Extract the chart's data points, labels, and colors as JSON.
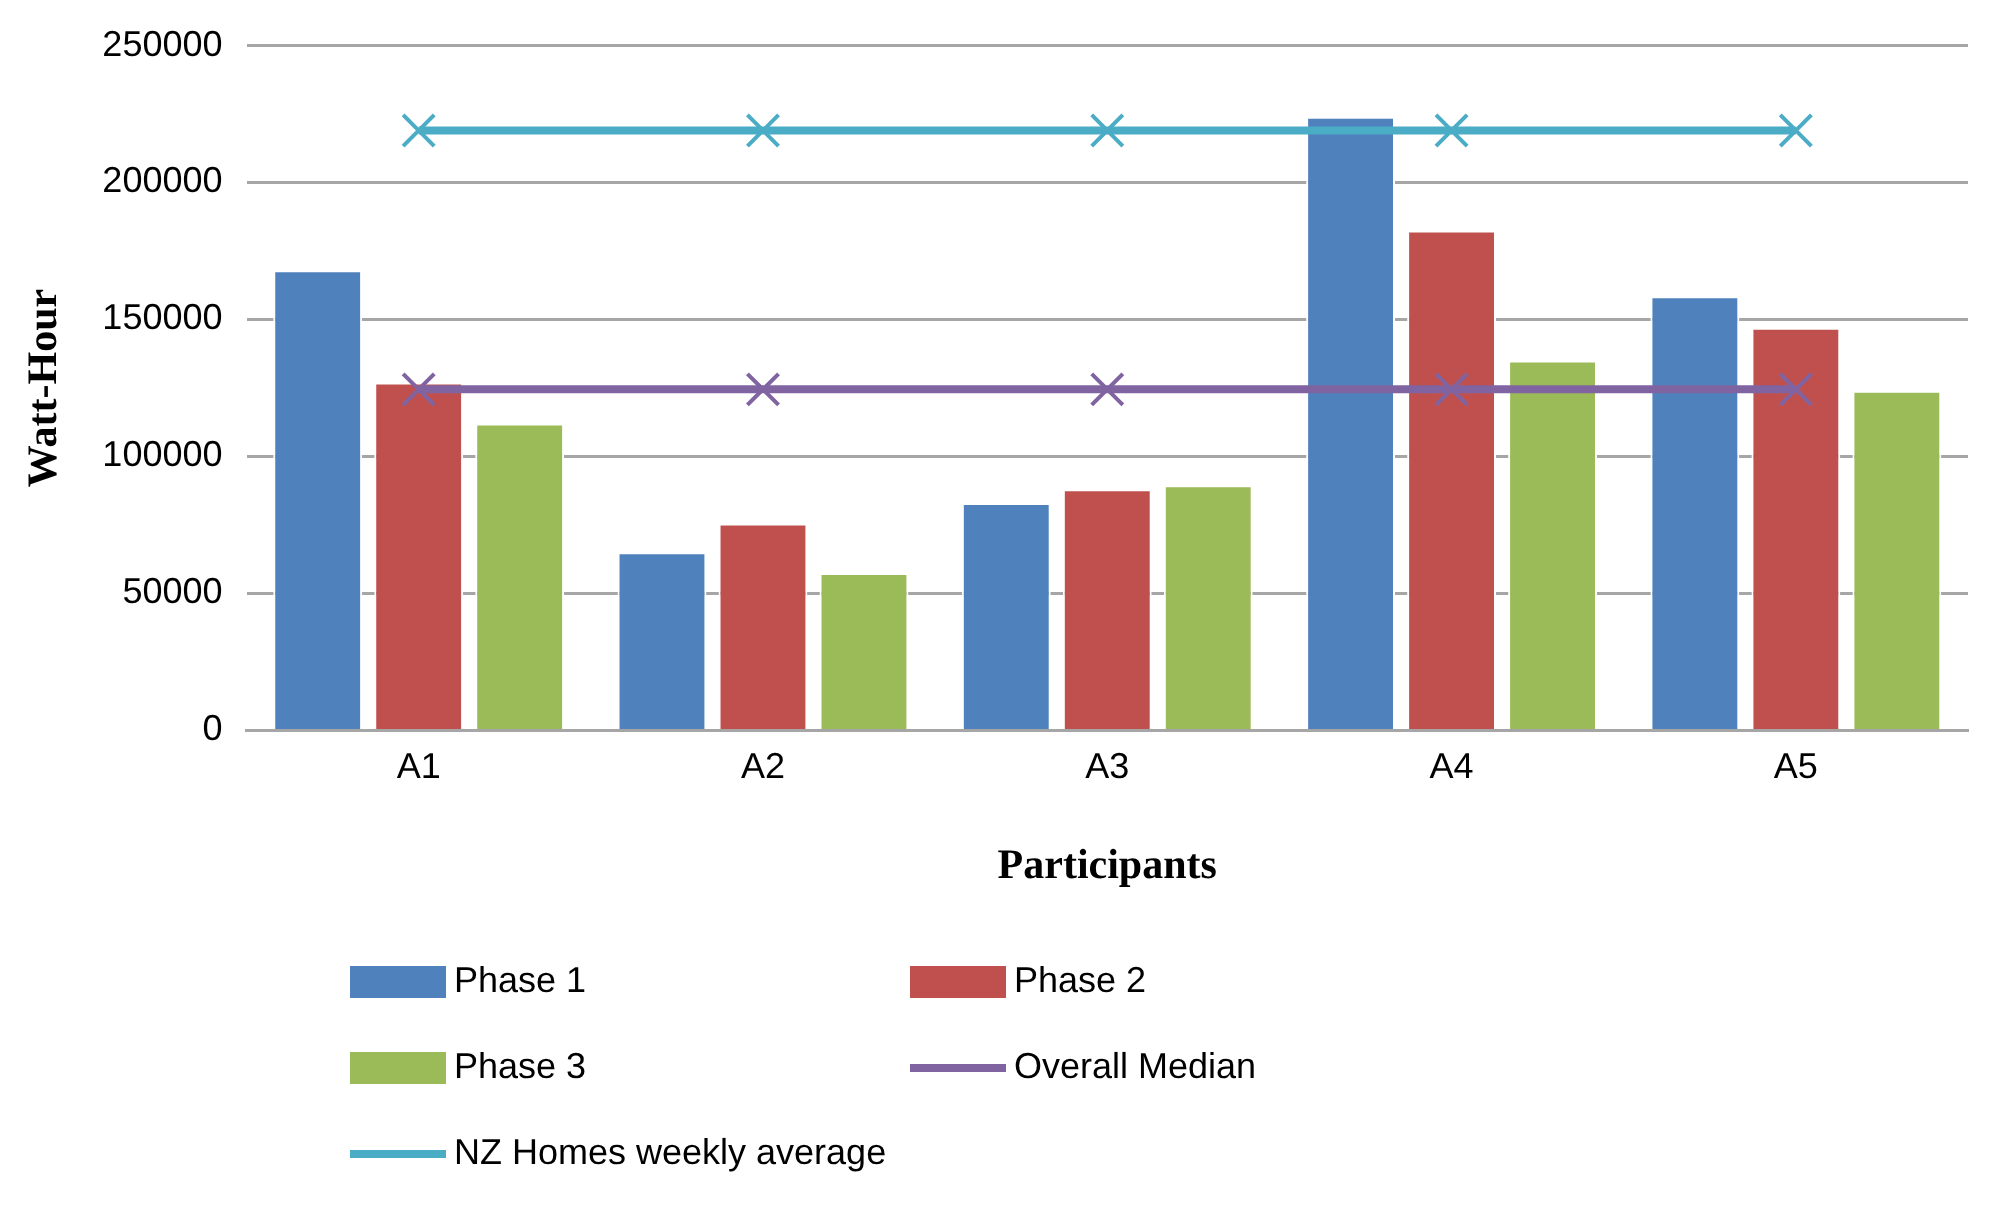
{
  "chart_data": {
    "type": "bar",
    "xlabel": "Participants",
    "ylabel": "Watt-Hour",
    "categories": [
      "A1",
      "A2",
      "A3",
      "A4",
      "A5"
    ],
    "series": [
      {
        "name": "Phase 1",
        "color": "#4f81bd",
        "values": [
          168000,
          65000,
          83000,
          224000,
          158500
        ]
      },
      {
        "name": "Phase 2",
        "color": "#c0504d",
        "values": [
          127000,
          75500,
          88000,
          182500,
          147000
        ]
      },
      {
        "name": "Phase 3",
        "color": "#9bbb59",
        "values": [
          112000,
          57500,
          89500,
          135000,
          124000
        ]
      },
      {
        "name": "Overall Median",
        "type": "line",
        "marker": "cross",
        "color": "#8064a2",
        "values": [
          124500,
          124500,
          124500,
          124500,
          124500
        ]
      },
      {
        "name": "NZ Homes weekly average",
        "type": "line",
        "marker": "cross",
        "color": "#4bacc6",
        "values": [
          219000,
          219000,
          219000,
          219000,
          219000
        ]
      }
    ],
    "ylim": [
      0,
      250000
    ],
    "yticks": [
      0,
      50000,
      100000,
      150000,
      200000,
      250000
    ],
    "grid": "y",
    "legend": "bottom"
  }
}
